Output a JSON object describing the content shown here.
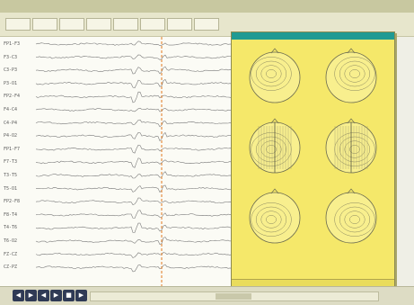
{
  "window": {
    "title_color": "#c8c8a0"
  },
  "channels": [
    {
      "label": "FP1-F3"
    },
    {
      "label": "F3-C3"
    },
    {
      "label": "C3-P3"
    },
    {
      "label": "P3-O1"
    },
    {
      "label": "FP2-F4"
    },
    {
      "label": "F4-C4"
    },
    {
      "label": "C4-P4"
    },
    {
      "label": "P4-O2"
    },
    {
      "label": "FP1-F7"
    },
    {
      "label": "F7-T3"
    },
    {
      "label": "T3-T5"
    },
    {
      "label": "T5-O1"
    },
    {
      "label": "FP2-F8"
    },
    {
      "label": "F8-T4"
    },
    {
      "label": "T4-T6"
    },
    {
      "label": "T6-O2"
    },
    {
      "label": "FZ-CZ"
    },
    {
      "label": "CZ-PZ"
    }
  ],
  "trace": {
    "line_color": "#7a7a7a",
    "cursor_color": "#e0781e"
  },
  "popup": {
    "title_color": "#1f9a93",
    "background": "#f5e86a",
    "heads": [
      {
        "name": "left-lateral"
      },
      {
        "name": "right-lateral"
      },
      {
        "name": "top-view-left"
      },
      {
        "name": "top-view-right"
      },
      {
        "name": "back-view-left"
      },
      {
        "name": "back-view-right"
      }
    ],
    "caption_line1": "",
    "caption_line2": ""
  },
  "bottom": {
    "nav_buttons": [
      {
        "glyph": "◀"
      },
      {
        "glyph": "▶"
      },
      {
        "glyph": "◀"
      },
      {
        "glyph": "▶"
      },
      {
        "glyph": "■"
      },
      {
        "glyph": "▶"
      }
    ],
    "scroll_position": 0.5
  }
}
